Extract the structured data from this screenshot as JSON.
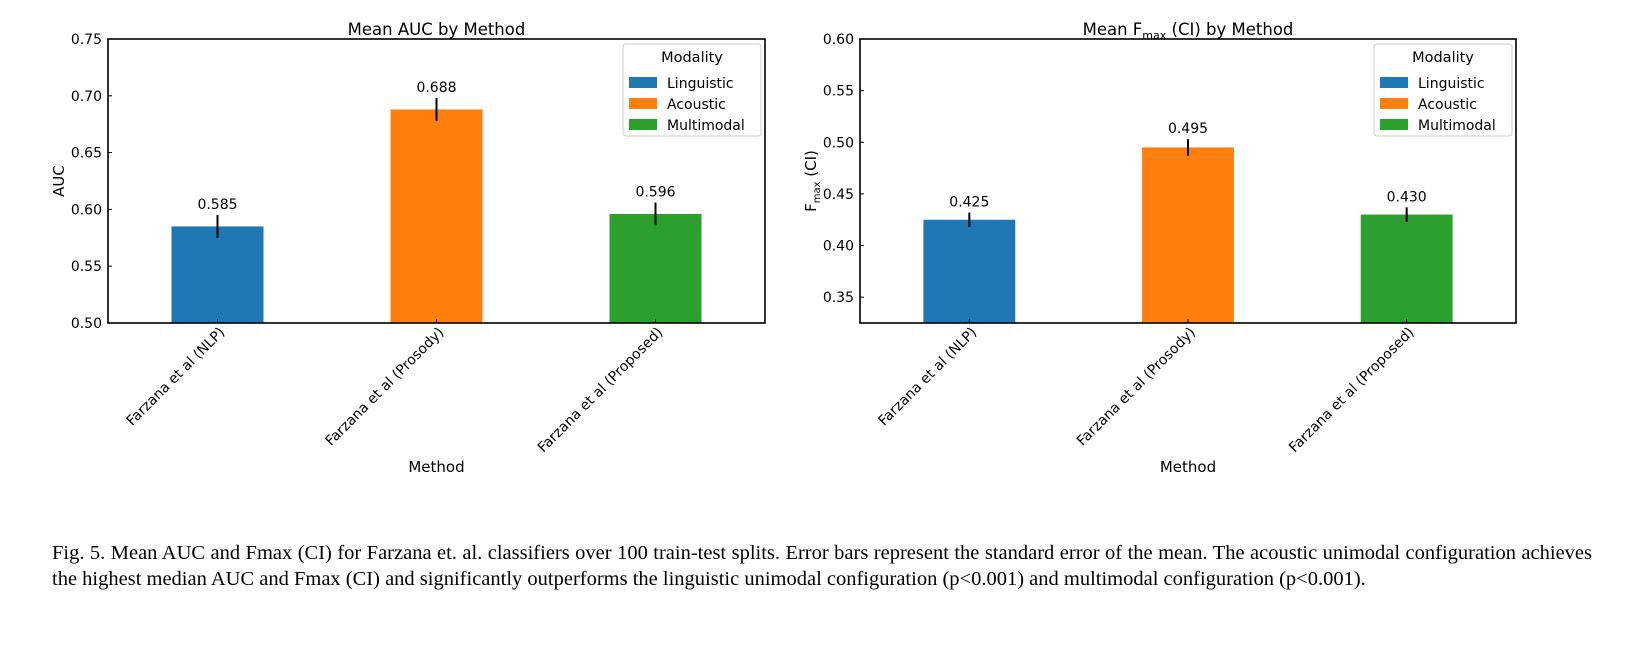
{
  "chart_data": [
    {
      "type": "bar",
      "title": "Mean AUC by Method",
      "xlabel": "Method",
      "ylabel": "AUC",
      "ylim": [
        0.5,
        0.75
      ],
      "yticks": [
        "0.50",
        "0.55",
        "0.60",
        "0.65",
        "0.70",
        "0.75"
      ],
      "categories": [
        "Farzana et al (NLP)",
        "Farzana et al (Prosody)",
        "Farzana et al (Proposed)"
      ],
      "values": [
        0.585,
        0.688,
        0.596
      ],
      "value_labels": [
        "0.585",
        "0.688",
        "0.596"
      ],
      "errors": [
        0.01,
        0.01,
        0.01
      ],
      "modality": [
        "Linguistic",
        "Acoustic",
        "Multimodal"
      ],
      "legend": {
        "title": "Modality",
        "position": "top-right",
        "entries": [
          "Linguistic",
          "Acoustic",
          "Multimodal"
        ]
      }
    },
    {
      "type": "bar",
      "title": "Mean F",
      "title_sub": "max",
      "title_suffix": " (CI) by Method",
      "xlabel": "Method",
      "ylabel": "F",
      "ylabel_sub": "max",
      "ylabel_suffix": " (CI)",
      "ylim": [
        0.325,
        0.6
      ],
      "yticks": [
        "0.35",
        "0.40",
        "0.45",
        "0.50",
        "0.55",
        "0.60"
      ],
      "categories": [
        "Farzana et al (NLP)",
        "Farzana et al (Prosody)",
        "Farzana et al (Proposed)"
      ],
      "values": [
        0.425,
        0.495,
        0.43
      ],
      "value_labels": [
        "0.425",
        "0.495",
        "0.430"
      ],
      "errors": [
        0.007,
        0.008,
        0.007
      ],
      "modality": [
        "Linguistic",
        "Acoustic",
        "Multimodal"
      ],
      "legend": {
        "title": "Modality",
        "position": "top-right",
        "entries": [
          "Linguistic",
          "Acoustic",
          "Multimodal"
        ]
      }
    }
  ],
  "colors": {
    "Linguistic": "#1f77b4",
    "Acoustic": "#ff7f0e",
    "Multimodal": "#2ca02c"
  },
  "caption": "Fig. 5.  Mean AUC and Fmax (CI) for Farzana et. al. classifiers over 100 train-test splits. Error bars represent the standard error of the mean. The acoustic unimodal configuration achieves the highest median AUC and Fmax (CI) and significantly outperforms the linguistic unimodal configuration (p<0.001) and multimodal configuration (p<0.001)."
}
